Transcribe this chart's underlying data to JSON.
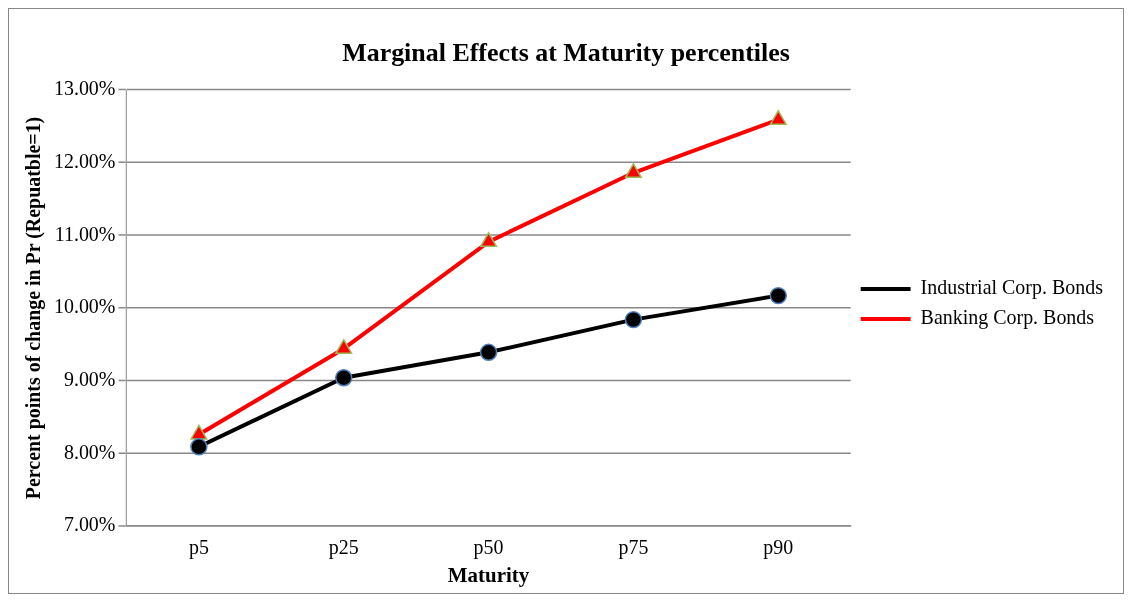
{
  "chart_data": {
    "type": "line",
    "title": "Marginal Effects at Maturity percentiles",
    "xlabel": "Maturity",
    "ylabel": "Percent points of change in Pr (Repuatble=1)",
    "categories": [
      "p5",
      "p25",
      "p50",
      "p75",
      "p90"
    ],
    "series": [
      {
        "name": "Industrial Corp. Bonds",
        "color": "#000000",
        "marker": "circle",
        "values": [
          8.09,
          9.04,
          9.39,
          9.84,
          10.17
        ]
      },
      {
        "name": "Banking Corp. Bonds",
        "color": "#ff0000",
        "marker": "triangle",
        "values": [
          8.26,
          9.44,
          10.91,
          11.86,
          12.59
        ]
      }
    ],
    "ylim": [
      7,
      13
    ],
    "yticks": [
      {
        "value": 7,
        "label": "7.00%"
      },
      {
        "value": 8,
        "label": "8.00%"
      },
      {
        "value": 9,
        "label": "9.00%"
      },
      {
        "value": 10,
        "label": "10.00%"
      },
      {
        "value": 11,
        "label": "11.00%"
      },
      {
        "value": 12,
        "label": "12.00%"
      },
      {
        "value": 13,
        "label": "13.00%"
      }
    ],
    "grid": "y",
    "legend": "right"
  }
}
